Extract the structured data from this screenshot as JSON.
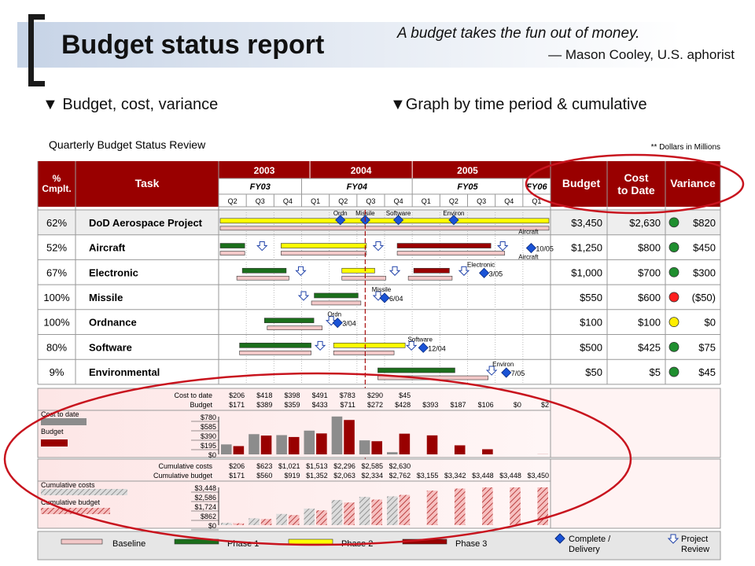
{
  "header": {
    "title": "Budget status report",
    "quote": "A budget takes the fun out of money.",
    "attribution": "— Mason Cooley, U.S. aphorist"
  },
  "sections": {
    "left": "▼ Budget, cost, variance",
    "right": "▼Graph by time period & cumulative"
  },
  "chart_data": {
    "type": "table",
    "title": "Quarterly Budget Status Review",
    "note": "** Dollars in Millions",
    "columns": {
      "pct": "% Cmplt.",
      "task": "Task",
      "budget": "Budget",
      "cost": "Cost to Date",
      "variance": "Variance"
    },
    "years": [
      "2003",
      "2004",
      "2005"
    ],
    "fiscal_years": [
      "FY03",
      "FY04",
      "FY05",
      "FY06"
    ],
    "quarters": [
      "Q2",
      "Q3",
      "Q4",
      "Q1",
      "Q2",
      "Q3",
      "Q4",
      "Q1",
      "Q2",
      "Q3",
      "Q4",
      "Q1"
    ],
    "tasks": [
      {
        "pct": "62%",
        "name": "DoD Aerospace Project",
        "budget": "$3,450",
        "cost": "$2,630",
        "status": "green",
        "variance": "$820",
        "bars": [
          {
            "phase": "p2",
            "start": 0,
            "end": 12
          },
          {
            "phase": "base",
            "start": 0,
            "end": 12
          }
        ],
        "milestones": [
          {
            "pos": 4.4,
            "label": "Ordn"
          },
          {
            "pos": 5.3,
            "label": "Missile"
          },
          {
            "pos": 6.5,
            "label": "Software"
          },
          {
            "pos": 8.5,
            "label": "Environ"
          }
        ],
        "review": [],
        "end_note": "Aircraft"
      },
      {
        "pos_row": 1,
        "pct": "52%",
        "name": "Aircraft",
        "budget": "$1,250",
        "cost": "$800",
        "status": "green",
        "variance": "$450",
        "bars": [
          {
            "phase": "p1",
            "start": 0,
            "end": 1.0
          },
          {
            "phase": "p2",
            "start": 2.2,
            "end": 5.4
          },
          {
            "phase": "p3",
            "start": 6.4,
            "end": 9.9
          },
          {
            "phase": "base",
            "start": 0,
            "end": 1.0
          },
          {
            "phase": "base",
            "start": 2.2,
            "end": 5.4
          },
          {
            "phase": "base",
            "start": 6.4,
            "end": 10.4
          }
        ],
        "milestones": [
          {
            "pos": 11.3,
            "label": "10/05"
          }
        ],
        "review": [
          1.4,
          5.6,
          10.1
        ],
        "end_note": "Aircraft"
      },
      {
        "pct": "67%",
        "name": "Electronic",
        "budget": "$1,000",
        "cost": "$700",
        "status": "green",
        "variance": "$300",
        "bars": [
          {
            "phase": "p1",
            "start": 0.8,
            "end": 2.5
          },
          {
            "phase": "p2",
            "start": 4.4,
            "end": 5.7
          },
          {
            "phase": "p3",
            "start": 7.0,
            "end": 8.4
          },
          {
            "phase": "base",
            "start": 0.6,
            "end": 2.6
          },
          {
            "phase": "base",
            "start": 4.4,
            "end": 6.1
          },
          {
            "phase": "base",
            "start": 6.8,
            "end": 8.5
          }
        ],
        "milestones": [
          {
            "pos": 9.6,
            "label": "3/05",
            "top": "Electronic"
          }
        ],
        "review": [
          2.8,
          6.2,
          8.7
        ]
      },
      {
        "pct": "100%",
        "name": "Missile",
        "budget": "$550",
        "cost": "$600",
        "status": "red",
        "variance": "($50)",
        "bars": [
          {
            "phase": "p1",
            "start": 3.4,
            "end": 5.1
          },
          {
            "phase": "base",
            "start": 3.3,
            "end": 5.2
          }
        ],
        "milestones": [
          {
            "pos": 6.0,
            "label": "6/04",
            "top": "Missile"
          }
        ],
        "review": [
          2.9,
          5.6
        ]
      },
      {
        "pct": "100%",
        "name": "Ordnance",
        "budget": "$100",
        "cost": "$100",
        "status": "yellow",
        "variance": "$0",
        "bars": [
          {
            "phase": "p1",
            "start": 1.6,
            "end": 3.5
          },
          {
            "phase": "base",
            "start": 1.7,
            "end": 3.8
          }
        ],
        "milestones": [
          {
            "pos": 4.3,
            "label": "3/04",
            "top": "Ordn"
          }
        ],
        "review": [
          3.9
        ]
      },
      {
        "pct": "80%",
        "name": "Software",
        "budget": "$500",
        "cost": "$425",
        "status": "green",
        "variance": "$75",
        "bars": [
          {
            "phase": "p1",
            "start": 0.7,
            "end": 3.4
          },
          {
            "phase": "p2",
            "start": 4.1,
            "end": 6.8
          },
          {
            "phase": "base",
            "start": 0.7,
            "end": 3.4
          },
          {
            "phase": "base",
            "start": 4.1,
            "end": 6.4
          }
        ],
        "milestones": [
          {
            "pos": 7.4,
            "label": "12/04",
            "top": "Software"
          }
        ],
        "review": [
          3.5,
          6.8
        ]
      },
      {
        "pct": "9%",
        "name": "Environmental",
        "budget": "$50",
        "cost": "$5",
        "status": "green",
        "variance": "$45",
        "bars": [
          {
            "phase": "p1",
            "start": 5.7,
            "end": 8.6
          },
          {
            "phase": "base",
            "start": 5.7,
            "end": 9.8
          }
        ],
        "milestones": [
          {
            "pos": 10.4,
            "label": "7/05",
            "top": "Environ"
          }
        ],
        "review": [
          9.7
        ]
      }
    ],
    "quarterly": {
      "cost_label": "Cost to date",
      "budget_label": "Budget",
      "cost_values_text": [
        "$206",
        "$418",
        "$398",
        "$491",
        "$783",
        "$290",
        "$45",
        "",
        "",
        "",
        "",
        ""
      ],
      "budget_values_text": [
        "$171",
        "$389",
        "$359",
        "$433",
        "$711",
        "$272",
        "$428",
        "$393",
        "$187",
        "$106",
        "$0",
        "$2"
      ],
      "cost": [
        206,
        418,
        398,
        491,
        783,
        290,
        45,
        null,
        null,
        null,
        null,
        null
      ],
      "budget": [
        171,
        389,
        359,
        433,
        711,
        272,
        428,
        393,
        187,
        106,
        0,
        2
      ],
      "ylim": [
        0,
        780
      ],
      "yticks": [
        "$780",
        "$585",
        "$390",
        "$195",
        "$0"
      ],
      "legend": [
        "Cost to date",
        "Budget"
      ]
    },
    "cumulative": {
      "cost_label": "Cumulative costs",
      "budget_label": "Cumulative budget",
      "cost_values_text": [
        "$206",
        "$623",
        "$1,021",
        "$1,513",
        "$2,296",
        "$2,585",
        "$2,630",
        "",
        "",
        "",
        "",
        ""
      ],
      "budget_values_text": [
        "$171",
        "$560",
        "$919",
        "$1,352",
        "$2,063",
        "$2,334",
        "$2,762",
        "$3,155",
        "$3,342",
        "$3,448",
        "$3,448",
        "$3,450"
      ],
      "cost": [
        206,
        623,
        1021,
        1513,
        2296,
        2585,
        2630,
        null,
        null,
        null,
        null,
        null
      ],
      "budget": [
        171,
        560,
        919,
        1352,
        2063,
        2334,
        2762,
        3155,
        3342,
        3448,
        3448,
        3450
      ],
      "ylim": [
        0,
        3448
      ],
      "yticks": [
        "$3,448",
        "$2,586",
        "$1,724",
        "$862",
        "$0"
      ],
      "legend": [
        "Cumulative costs",
        "Cumulative budget"
      ]
    },
    "legend_items": [
      "Baseline",
      "Phase 1",
      "Phase 2",
      "Phase 3",
      "Complete / Delivery",
      "Project Review"
    ],
    "colors": {
      "header": "#990000",
      "p1": "#1b6e1b",
      "p2": "#ffff00",
      "p3": "#990000",
      "base": "#f2c8c8",
      "milestone": "#1a53d6",
      "circle": "#c8141e",
      "green": "#1f8f2f",
      "yellow": "#ffee00",
      "red": "#ff2020"
    }
  }
}
